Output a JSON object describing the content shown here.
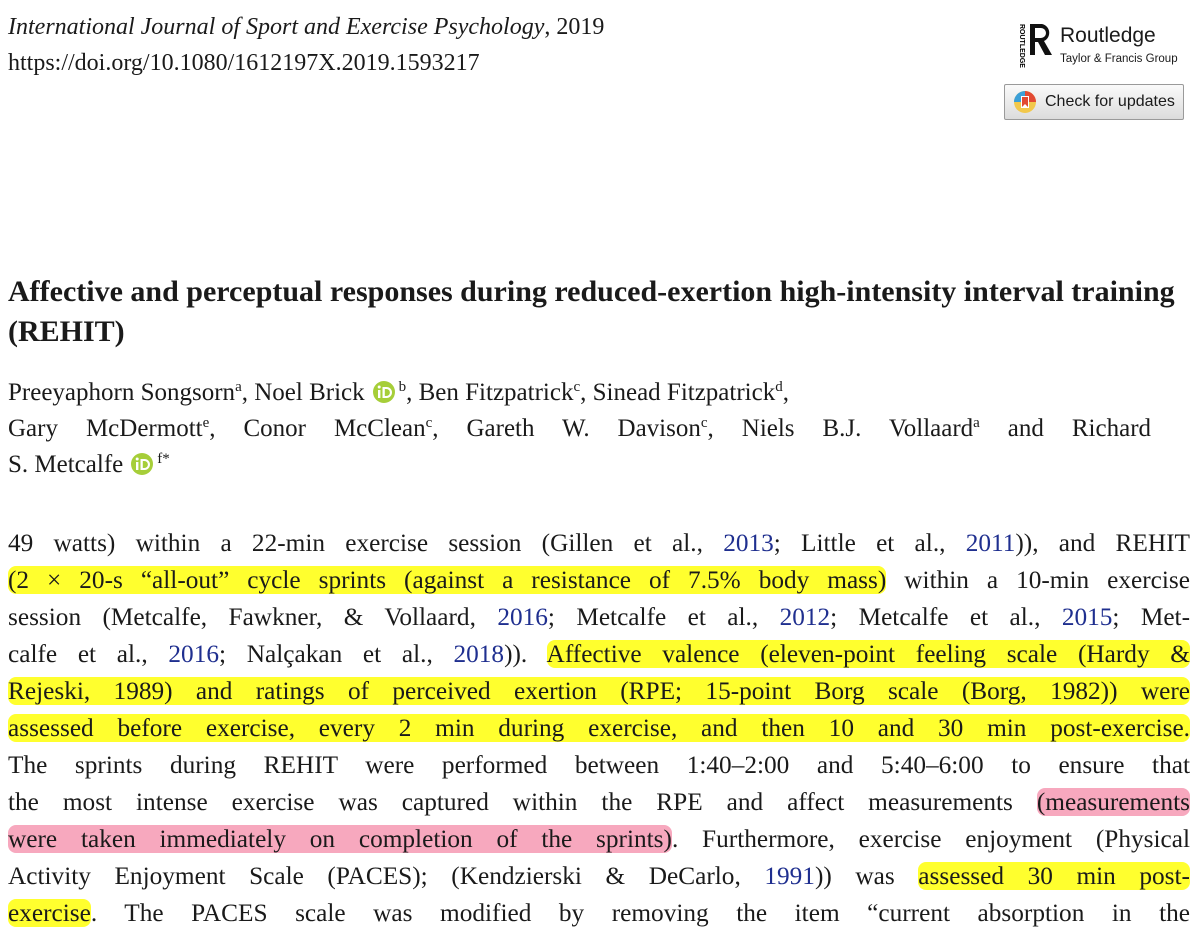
{
  "header": {
    "journal": "International Journal of Sport and Exercise Psychology",
    "year": ", 2019",
    "doi": "https://doi.org/10.1080/1612197X.2019.1593217",
    "publisher": "Routledge",
    "publisher_group": "Taylor & Francis Group",
    "logo_text": "ROUTLEDGE",
    "update_button": "Check for updates"
  },
  "article": {
    "title": "Affective and perceptual responses during reduced-exertion high-intensity interval training (REHIT)",
    "author_lines": [
      {
        "runs": [
          {
            "text": "Preeyaphorn Songsorn",
            "sup": "a"
          },
          {
            "text": ", Noel Brick",
            "orcid": true,
            "sup": "b"
          },
          {
            "text": ", Ben Fitzpatrick",
            "sup": "c"
          },
          {
            "text": ", Sinead Fitzpatrick",
            "sup": "d"
          },
          {
            "text": ","
          }
        ]
      },
      {
        "justify": true,
        "runs": [
          {
            "text": "Gary McDermott",
            "sup": "e"
          },
          {
            "text": ", Conor McClean",
            "sup": "c"
          },
          {
            "text": ", Gareth W. Davison",
            "sup": "c"
          },
          {
            "text": ", Niels B.J. Vollaard",
            "sup": "a"
          },
          {
            "text": " and Richard"
          }
        ]
      },
      {
        "runs": [
          {
            "text": "S. Metcalfe",
            "orcid": true,
            "sup": "f*"
          }
        ]
      }
    ]
  },
  "body": {
    "lines": [
      [
        {
          "text": "49 watts) within a 22-min exercise session (Gillen et al., "
        },
        {
          "text": "2013",
          "style": "link"
        },
        {
          "text": "; Little et al., "
        },
        {
          "text": "2011",
          "style": "link"
        },
        {
          "text": ")), and REHIT"
        }
      ],
      [
        {
          "text": "(2 × 20-s “all-out” cycle sprints (against a resistance of 7.5% body mass)",
          "style": "yellow"
        },
        {
          "text": " within a 10-min exercise"
        }
      ],
      [
        {
          "text": "session (Metcalfe, Fawkner, & Vollaard, "
        },
        {
          "text": "2016",
          "style": "link"
        },
        {
          "text": "; Metcalfe et al., "
        },
        {
          "text": "2012",
          "style": "link"
        },
        {
          "text": "; Metcalfe et al., "
        },
        {
          "text": "2015",
          "style": "link"
        },
        {
          "text": "; Met-"
        }
      ],
      [
        {
          "text": "calfe et al., "
        },
        {
          "text": "2016",
          "style": "link"
        },
        {
          "text": "; Nalçakan et al., "
        },
        {
          "text": "2018",
          "style": "link"
        },
        {
          "text": ")). "
        },
        {
          "text": "Affective valence (eleven-point feeling scale (Hardy &",
          "style": "yellow"
        }
      ],
      [
        {
          "text": "Rejeski, 1989) and ratings of perceived exertion (RPE; 15-point Borg scale (Borg, 1982)) were",
          "style": "yellow"
        }
      ],
      [
        {
          "text": "assessed before exercise, every 2 min during exercise, and then 10 and 30 min post-exercise.",
          "style": "yellow"
        }
      ],
      [
        {
          "text": "The sprints during REHIT were performed between 1:40–2:00 and 5:40–6:00 to ensure that"
        }
      ],
      [
        {
          "text": "the most intense exercise was captured within the RPE and affect measurements "
        },
        {
          "text": "(measurements",
          "style": "pink"
        }
      ],
      [
        {
          "text": "were taken immediately on completion of the sprints)",
          "style": "pink"
        },
        {
          "text": ". Furthermore, exercise enjoyment (Physical"
        }
      ],
      [
        {
          "text": "Activity Enjoyment Scale (PACES); (Kendzierski & DeCarlo, "
        },
        {
          "text": "1991",
          "style": "link"
        },
        {
          "text": ")) was "
        },
        {
          "text": "assessed 30 min post-",
          "style": "yellow"
        }
      ],
      [
        {
          "text": "exercise",
          "style": "yellow"
        },
        {
          "text": ". The PACES scale was modified by removing the item “current absorption in the"
        }
      ]
    ]
  }
}
